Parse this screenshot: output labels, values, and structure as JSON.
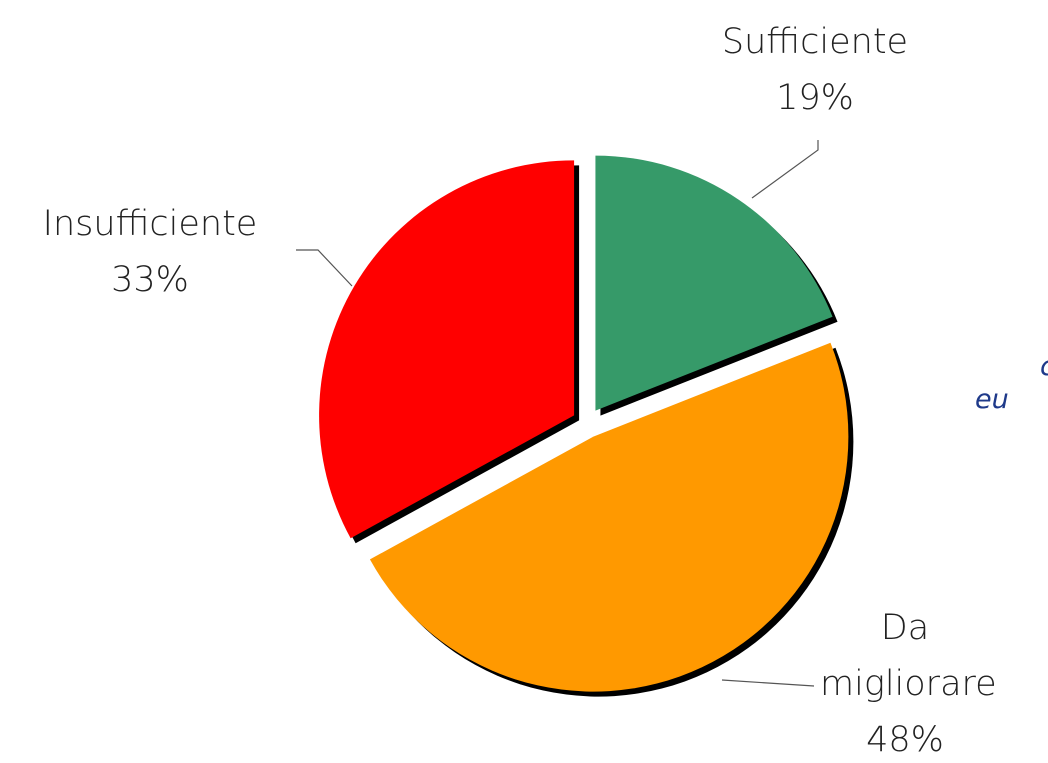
{
  "chart_data": {
    "type": "pie",
    "categories": [
      "Sufficiente",
      "Da migliorare",
      "Insufficiente"
    ],
    "values": [
      19,
      48,
      33
    ],
    "value_labels": [
      "19%",
      "48%",
      "33%"
    ],
    "colors": [
      "#369a69",
      "#ff9900",
      "#ff0000"
    ],
    "annotations": [
      "c",
      "eu"
    ]
  }
}
